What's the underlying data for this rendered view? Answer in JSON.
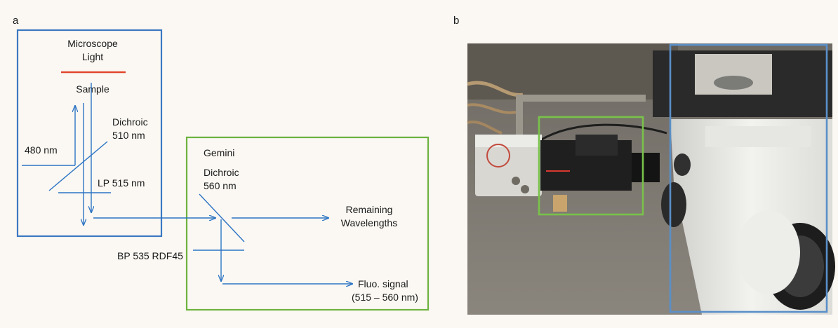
{
  "panel_a": {
    "letter": "a",
    "microscope_light_line1": "Microscope",
    "microscope_light_line2": "Light",
    "sample": "Sample",
    "dichroic1_line1": "Dichroic",
    "dichroic1_line2": "510 nm",
    "laser": "480 nm",
    "lp_filter": "LP 515 nm",
    "gemini": "Gemini",
    "dichroic2_line1": "Dichroic",
    "dichroic2_line2": "560 nm",
    "remaining_line1": "Remaining",
    "remaining_line2": "Wavelengths",
    "bp_filter": "BP 535 RDF45",
    "fluo_line1": "Fluo. signal",
    "fluo_line2": "(515 – 560 nm)",
    "colors": {
      "microscope_box": "#3a78c1",
      "gemini_box": "#6cb33f",
      "beam": "#2d74c4",
      "light_bar": "#e0472f"
    }
  },
  "panel_b": {
    "letter": "b",
    "colors": {
      "camera_highlight": "#79c24a",
      "microscope_highlight": "#5a8fc8"
    }
  }
}
